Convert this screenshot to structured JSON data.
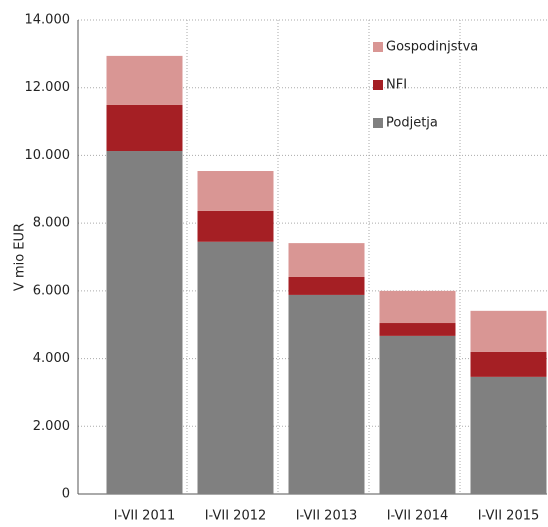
{
  "chart_data": {
    "type": "stacked_bar",
    "y_label": "V mio EUR",
    "categories": [
      "I-VII 2011",
      "I-VII 2012",
      "I-VII 2013",
      "I-VII 2014",
      "I-VII 2015"
    ],
    "series": [
      {
        "name": "Podjetja",
        "color": "#808080",
        "values": [
          10130,
          7450,
          5880,
          4670,
          3460
        ]
      },
      {
        "name": "NFI",
        "color": "#a51f24",
        "values": [
          1360,
          910,
          530,
          380,
          740
        ]
      },
      {
        "name": "Gospodinjstva",
        "color": "#d99694",
        "values": [
          1450,
          1180,
          1000,
          950,
          1210
        ]
      }
    ],
    "ylim": [
      0,
      14000
    ],
    "yticks": [
      0,
      {
        "value": 2000,
        "label": "2.000"
      },
      {
        "value": 4000,
        "label": "4.000"
      },
      {
        "value": 6000,
        "label": "6.000"
      },
      {
        "value": 8000,
        "label": "8.000"
      },
      {
        "value": 10000,
        "label": "10.000"
      },
      {
        "value": 12000,
        "label": "12.000"
      },
      {
        "value": 14000,
        "label": "14.000"
      }
    ],
    "grid": true,
    "legend": "top-right"
  }
}
